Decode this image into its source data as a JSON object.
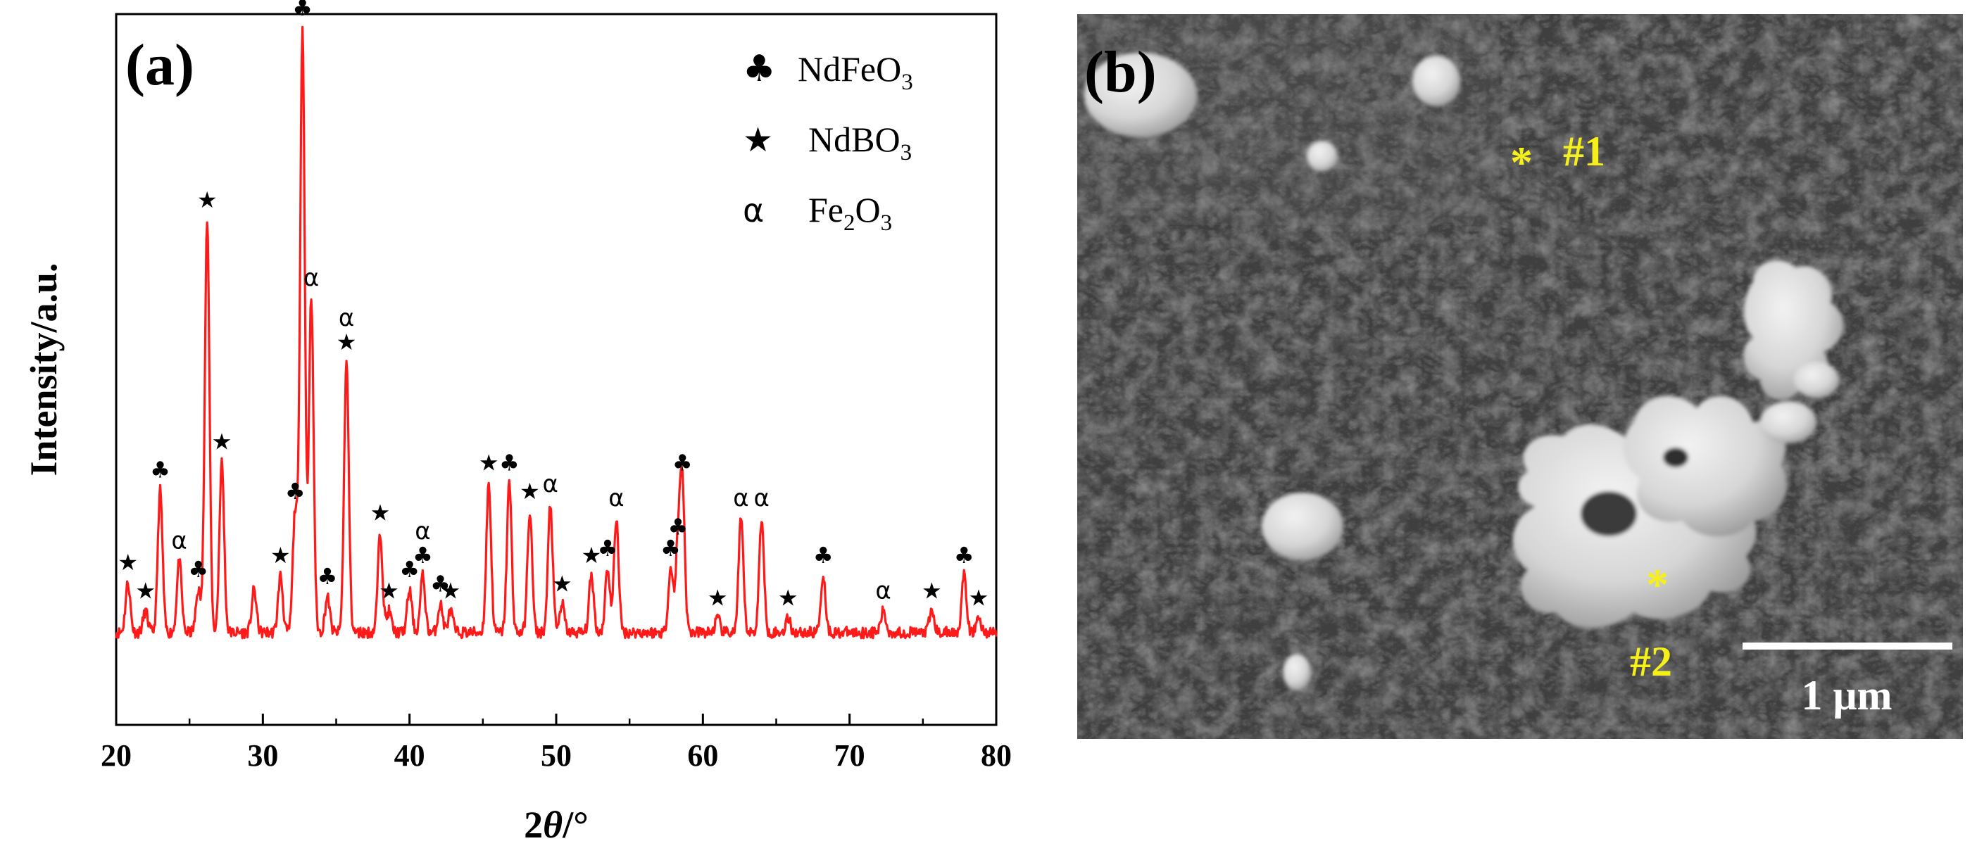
{
  "chart_data": {
    "type": "line",
    "panel_label": "(a)",
    "title": "",
    "xlabel_main": "2",
    "xlabel_italic": "θ",
    "xlabel_suffix": "/°",
    "ylabel": "Intensity/a.u.",
    "xlim": [
      20,
      80
    ],
    "ylim": [
      0,
      1
    ],
    "x_ticks": [
      "20",
      "30",
      "40",
      "50",
      "60",
      "70",
      "80"
    ],
    "line_color": "#ff1a1a",
    "baseline": 0.13,
    "noise_amplitude": 0.008,
    "peaks": [
      {
        "x": 20.8,
        "h": 0.07,
        "marker": "star"
      },
      {
        "x": 22.0,
        "h": 0.03,
        "marker": "star"
      },
      {
        "x": 23.0,
        "h": 0.2,
        "marker": "club"
      },
      {
        "x": 24.3,
        "h": 0.1,
        "marker": "alpha"
      },
      {
        "x": 25.6,
        "h": 0.06,
        "marker": "club"
      },
      {
        "x": 26.2,
        "h": 0.58,
        "marker": "star"
      },
      {
        "x": 27.2,
        "h": 0.24,
        "marker": "star"
      },
      {
        "x": 29.4,
        "h": 0.06,
        "marker": ""
      },
      {
        "x": 31.2,
        "h": 0.08,
        "marker": "star"
      },
      {
        "x": 32.2,
        "h": 0.17,
        "marker": "club"
      },
      {
        "x": 32.7,
        "h": 0.85,
        "marker": "club"
      },
      {
        "x": 33.3,
        "h": 0.47,
        "marker": "alpha"
      },
      {
        "x": 34.4,
        "h": 0.05,
        "marker": "club"
      },
      {
        "x": 35.7,
        "h": 0.38,
        "marker": "star-alpha"
      },
      {
        "x": 38.0,
        "h": 0.14,
        "marker": "star"
      },
      {
        "x": 38.6,
        "h": 0.03,
        "marker": "star"
      },
      {
        "x": 40.0,
        "h": 0.06,
        "marker": "club"
      },
      {
        "x": 40.9,
        "h": 0.08,
        "marker": "club-alpha"
      },
      {
        "x": 42.1,
        "h": 0.04,
        "marker": "club"
      },
      {
        "x": 42.8,
        "h": 0.03,
        "marker": "star"
      },
      {
        "x": 45.4,
        "h": 0.21,
        "marker": "star"
      },
      {
        "x": 46.8,
        "h": 0.21,
        "marker": "club"
      },
      {
        "x": 48.2,
        "h": 0.17,
        "marker": "star"
      },
      {
        "x": 49.6,
        "h": 0.18,
        "marker": "alpha"
      },
      {
        "x": 50.4,
        "h": 0.04,
        "marker": "star"
      },
      {
        "x": 52.4,
        "h": 0.08,
        "marker": "star"
      },
      {
        "x": 53.5,
        "h": 0.09,
        "marker": "club"
      },
      {
        "x": 54.1,
        "h": 0.16,
        "marker": "alpha"
      },
      {
        "x": 57.8,
        "h": 0.09,
        "marker": "club"
      },
      {
        "x": 58.3,
        "h": 0.12,
        "marker": "club"
      },
      {
        "x": 58.6,
        "h": 0.21,
        "marker": "club"
      },
      {
        "x": 61.0,
        "h": 0.02,
        "marker": "star"
      },
      {
        "x": 62.6,
        "h": 0.16,
        "marker": "alpha"
      },
      {
        "x": 64.0,
        "h": 0.16,
        "marker": "alpha"
      },
      {
        "x": 65.8,
        "h": 0.02,
        "marker": "star"
      },
      {
        "x": 68.2,
        "h": 0.08,
        "marker": "club"
      },
      {
        "x": 72.3,
        "h": 0.03,
        "marker": "alpha"
      },
      {
        "x": 75.6,
        "h": 0.03,
        "marker": "star"
      },
      {
        "x": 77.8,
        "h": 0.08,
        "marker": "club"
      },
      {
        "x": 78.8,
        "h": 0.02,
        "marker": "star"
      }
    ],
    "legend": [
      {
        "symbol": "♣",
        "name": "NdFeO",
        "sub": "3",
        "tail": ""
      },
      {
        "symbol": "★",
        "name": "NdBO",
        "sub": "3",
        "tail": ""
      },
      {
        "symbol": "α",
        "name": "Fe",
        "sub": "2",
        "tail": "O",
        "sub2": "3"
      }
    ]
  },
  "sem": {
    "panel_label": "(b)",
    "point1_marker": "*",
    "point1_label": "#1",
    "point2_marker": "*",
    "point2_label": "#2",
    "scale_bar_label": "1 μm",
    "marker_color": "#f5ef1a"
  }
}
